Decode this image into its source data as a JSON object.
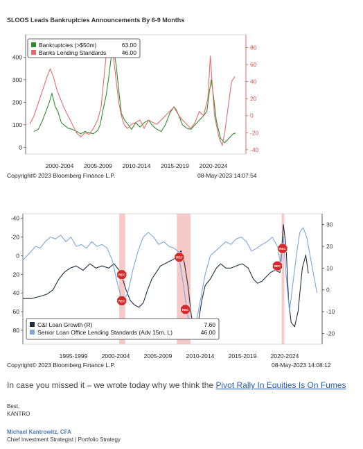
{
  "chart_data": [
    {
      "type": "line",
      "title": "SLOOS Leads Bankruptcies Announcements By 6-9 Months",
      "x_tick_labels": [
        "2000-2004",
        "2005-2009",
        "2010-2014",
        "2015-2019",
        "2020-2024"
      ],
      "left_axis": {
        "ticks": [
          0,
          100,
          200,
          300,
          400
        ],
        "color": "#333333",
        "ylim": [
          -30,
          500
        ]
      },
      "right_axis": {
        "ticks": [
          -40,
          -20,
          0,
          20,
          40,
          60,
          80
        ],
        "color": "#d9534f",
        "ylim": [
          -45,
          95
        ]
      },
      "xlim": [
        1998.5,
        2024.5
      ],
      "legend": {
        "placement": "top-left",
        "entries": [
          {
            "name": "Bankruptcies (>$50m)",
            "value": "63.00",
            "color": "#2e8b2e"
          },
          {
            "name": "Banks Lending Standards",
            "value": "46.00",
            "color": "#e36b6b"
          }
        ]
      },
      "series": [
        {
          "name": "Bankruptcies (>$50m)",
          "axis": "left",
          "color": "#2e8b2e",
          "x": [
            1999.5,
            2000.0,
            2000.5,
            2001.0,
            2001.3,
            2001.6,
            2002.0,
            2002.3,
            2002.7,
            2003.0,
            2003.5,
            2004.0,
            2004.5,
            2005.0,
            2005.5,
            2006.0,
            2006.5,
            2007.0,
            2007.3,
            2007.6,
            2008.0,
            2008.3,
            2008.6,
            2008.9,
            2009.2,
            2009.5,
            2009.8,
            2010.2,
            2010.6,
            2011.0,
            2011.5,
            2012.0,
            2012.5,
            2013.0,
            2013.5,
            2014.0,
            2014.5,
            2015.0,
            2015.5,
            2016.0,
            2016.3,
            2016.7,
            2017.0,
            2017.5,
            2018.0,
            2018.5,
            2019.0,
            2019.5,
            2019.9,
            2020.2,
            2020.4,
            2020.7,
            2021.0,
            2021.5,
            2022.0,
            2022.5,
            2023.0,
            2023.3
          ],
          "y": [
            70,
            80,
            120,
            170,
            200,
            240,
            180,
            160,
            110,
            100,
            85,
            80,
            70,
            60,
            70,
            65,
            60,
            75,
            100,
            160,
            230,
            310,
            400,
            430,
            360,
            250,
            150,
            120,
            100,
            80,
            110,
            90,
            110,
            120,
            95,
            80,
            70,
            100,
            150,
            180,
            165,
            130,
            100,
            85,
            80,
            100,
            120,
            140,
            160,
            250,
            300,
            220,
            120,
            40,
            20,
            40,
            60,
            63
          ]
        },
        {
          "name": "Banks Lending Standards",
          "axis": "right",
          "color": "#e36b6b",
          "x": [
            1999.0,
            1999.5,
            2000.0,
            2000.5,
            2001.0,
            2001.4,
            2001.8,
            2002.2,
            2002.6,
            2003.0,
            2003.5,
            2004.0,
            2004.5,
            2005.0,
            2005.5,
            2006.0,
            2006.5,
            2007.0,
            2007.4,
            2007.7,
            2008.0,
            2008.3,
            2008.6,
            2008.9,
            2009.2,
            2009.5,
            2009.8,
            2010.1,
            2010.5,
            2011.0,
            2011.5,
            2012.0,
            2012.5,
            2013.0,
            2013.5,
            2014.0,
            2014.5,
            2015.0,
            2015.5,
            2016.0,
            2016.3,
            2016.6,
            2017.0,
            2017.5,
            2018.0,
            2018.5,
            2019.0,
            2019.5,
            2020.0,
            2020.3,
            2020.5,
            2020.8,
            2021.0,
            2021.3,
            2021.7,
            2022.0,
            2022.4,
            2022.8,
            2023.2
          ],
          "y": [
            -10,
            0,
            15,
            30,
            45,
            55,
            45,
            30,
            20,
            10,
            0,
            -10,
            -20,
            -25,
            -20,
            -22,
            -15,
            -5,
            10,
            40,
            70,
            85,
            80,
            65,
            40,
            15,
            0,
            -10,
            -15,
            -10,
            -8,
            -5,
            -15,
            -5,
            -8,
            -10,
            -5,
            0,
            5,
            10,
            5,
            0,
            -5,
            -10,
            -15,
            -8,
            5,
            0,
            20,
            70,
            40,
            0,
            -10,
            -25,
            -35,
            -20,
            10,
            40,
            46
          ]
        }
      ],
      "copyright": "Copyright© 2023 Bloomberg Finance L.P.",
      "date": "08-May-2023 14:07:54"
    },
    {
      "type": "line",
      "x_tick_labels": [
        "1995-1999",
        "2000-2004",
        "2005-2009",
        "2010-2014",
        "2015-2019",
        "2020-2024"
      ],
      "left_axis": {
        "ticks": [
          -40,
          -20,
          0,
          20,
          40,
          60,
          80
        ],
        "inverted": true,
        "ylim": [
          -45,
          95
        ]
      },
      "right_axis": {
        "ticks": [
          -20,
          -10,
          0,
          10,
          20,
          30
        ],
        "ylim": [
          -25,
          35
        ]
      },
      "xlim": [
        1990.0,
        2024.8
      ],
      "legend": {
        "placement": "bottom-left",
        "entries": [
          {
            "name": "C&I Loan Growth (R)",
            "value": "7.60",
            "color": "#1f2d3d"
          },
          {
            "name": "Senior Loan Office Lending Standards (Adv 15m, L)",
            "value": "46.00",
            "color": "#7aa6dd"
          }
        ]
      },
      "recession_bands": [
        [
          2001.2,
          2001.9
        ],
        [
          2007.9,
          2009.5
        ],
        [
          2020.1,
          2020.4
        ]
      ],
      "annotations": [
        {
          "text": "REC",
          "x": 2001.5,
          "y_right": 7
        },
        {
          "text": "REC",
          "x": 2001.5,
          "y_right": -5
        },
        {
          "text": "REC",
          "x": 2008.2,
          "y_right": 15
        },
        {
          "text": "REC",
          "x": 2008.9,
          "y_right": -9
        },
        {
          "text": "REC",
          "x": 2020.2,
          "y_right": 19
        },
        {
          "text": "REC",
          "x": 2019.6,
          "y_right": 11
        }
      ],
      "series": [
        {
          "name": "C&I Loan Growth (R)",
          "axis": "right",
          "color": "#1f2d3d",
          "x": [
            1990.0,
            1991.0,
            1992.0,
            1992.8,
            1993.5,
            1994.2,
            1994.8,
            1995.5,
            1996.2,
            1997.0,
            1997.8,
            1998.5,
            1999.2,
            2000.0,
            2000.6,
            2001.2,
            2001.6,
            2002.0,
            2002.5,
            2003.0,
            2003.5,
            2004.0,
            2004.5,
            2005.0,
            2005.5,
            2006.0,
            2006.5,
            2007.0,
            2007.5,
            2008.0,
            2008.4,
            2008.8,
            2009.2,
            2009.6,
            2010.0,
            2010.4,
            2010.8,
            2011.2,
            2011.8,
            2012.5,
            2013.0,
            2013.6,
            2014.2,
            2014.8,
            2015.5,
            2016.2,
            2016.8,
            2017.3,
            2017.8,
            2018.3,
            2018.8,
            2019.3,
            2019.9,
            2020.3,
            2020.6,
            2020.9,
            2021.2,
            2021.6,
            2022.0,
            2022.5,
            2022.9,
            2023.2
          ],
          "y": [
            -4,
            -4,
            -3,
            -2,
            0,
            5,
            8,
            10,
            11,
            9,
            12,
            10,
            11,
            10,
            12,
            9,
            5,
            0,
            -5,
            -7,
            -8,
            -6,
            0,
            5,
            8,
            11,
            12,
            13,
            14,
            16,
            18,
            12,
            2,
            -12,
            -20,
            -15,
            -5,
            2,
            5,
            10,
            12,
            10,
            10,
            11,
            12,
            10,
            5,
            3,
            4,
            6,
            8,
            9,
            8,
            30,
            20,
            -5,
            -15,
            -17,
            -10,
            10,
            16,
            7.6
          ]
        },
        {
          "name": "Senior Loan Office Lending Standards (Adv 15m, L)",
          "axis": "left",
          "color": "#7aa6dd",
          "x": [
            1990.0,
            1990.5,
            1991.0,
            1991.5,
            1992.0,
            1992.6,
            1993.2,
            1993.8,
            1994.4,
            1995.0,
            1995.6,
            1996.2,
            1996.8,
            1997.4,
            1998.0,
            1998.6,
            1999.2,
            1999.8,
            2000.4,
            2001.0,
            2001.6,
            2002.2,
            2002.8,
            2003.4,
            2004.0,
            2004.6,
            2005.2,
            2005.8,
            2006.4,
            2007.0,
            2007.6,
            2008.0,
            2008.4,
            2008.8,
            2009.2,
            2009.6,
            2010.0,
            2010.4,
            2010.8,
            2011.2,
            2011.8,
            2012.4,
            2013.0,
            2013.6,
            2014.2,
            2014.8,
            2015.4,
            2016.0,
            2016.6,
            2017.2,
            2017.8,
            2018.4,
            2019.0,
            2019.6,
            2020.0,
            2020.3,
            2020.6,
            2021.0,
            2021.4,
            2021.8,
            2022.2,
            2022.6,
            2023.0,
            2023.4,
            2023.8,
            2024.2
          ],
          "y": [
            5,
            0,
            -5,
            -10,
            -8,
            -15,
            -20,
            -18,
            -22,
            -15,
            -20,
            -10,
            -12,
            -8,
            -15,
            -10,
            -12,
            -8,
            5,
            30,
            50,
            40,
            15,
            -5,
            -20,
            -25,
            -20,
            -12,
            -15,
            -10,
            -8,
            -5,
            15,
            40,
            65,
            75,
            80,
            60,
            40,
            20,
            0,
            -5,
            -10,
            -15,
            -12,
            -18,
            -20,
            -15,
            -5,
            -8,
            -12,
            -15,
            -20,
            -10,
            10,
            -20,
            20,
            60,
            30,
            0,
            -25,
            -30,
            -20,
            0,
            20,
            40
          ]
        }
      ],
      "copyright": "Copyright© 2023 Bloomberg Finance L.P.",
      "date": "08-May-2023 14:08:12"
    }
  ],
  "email": {
    "intro": "In case you missed it – we wrote today why we think the ",
    "link_text": "Pivot Rally In Equities Is On Fumes",
    "closing": "Best,",
    "company": "KANTRO",
    "sender_name": "Michael Kantrowitz, CFA",
    "sender_title": "Chief Investment Strategist | Portfolio Strategy"
  }
}
